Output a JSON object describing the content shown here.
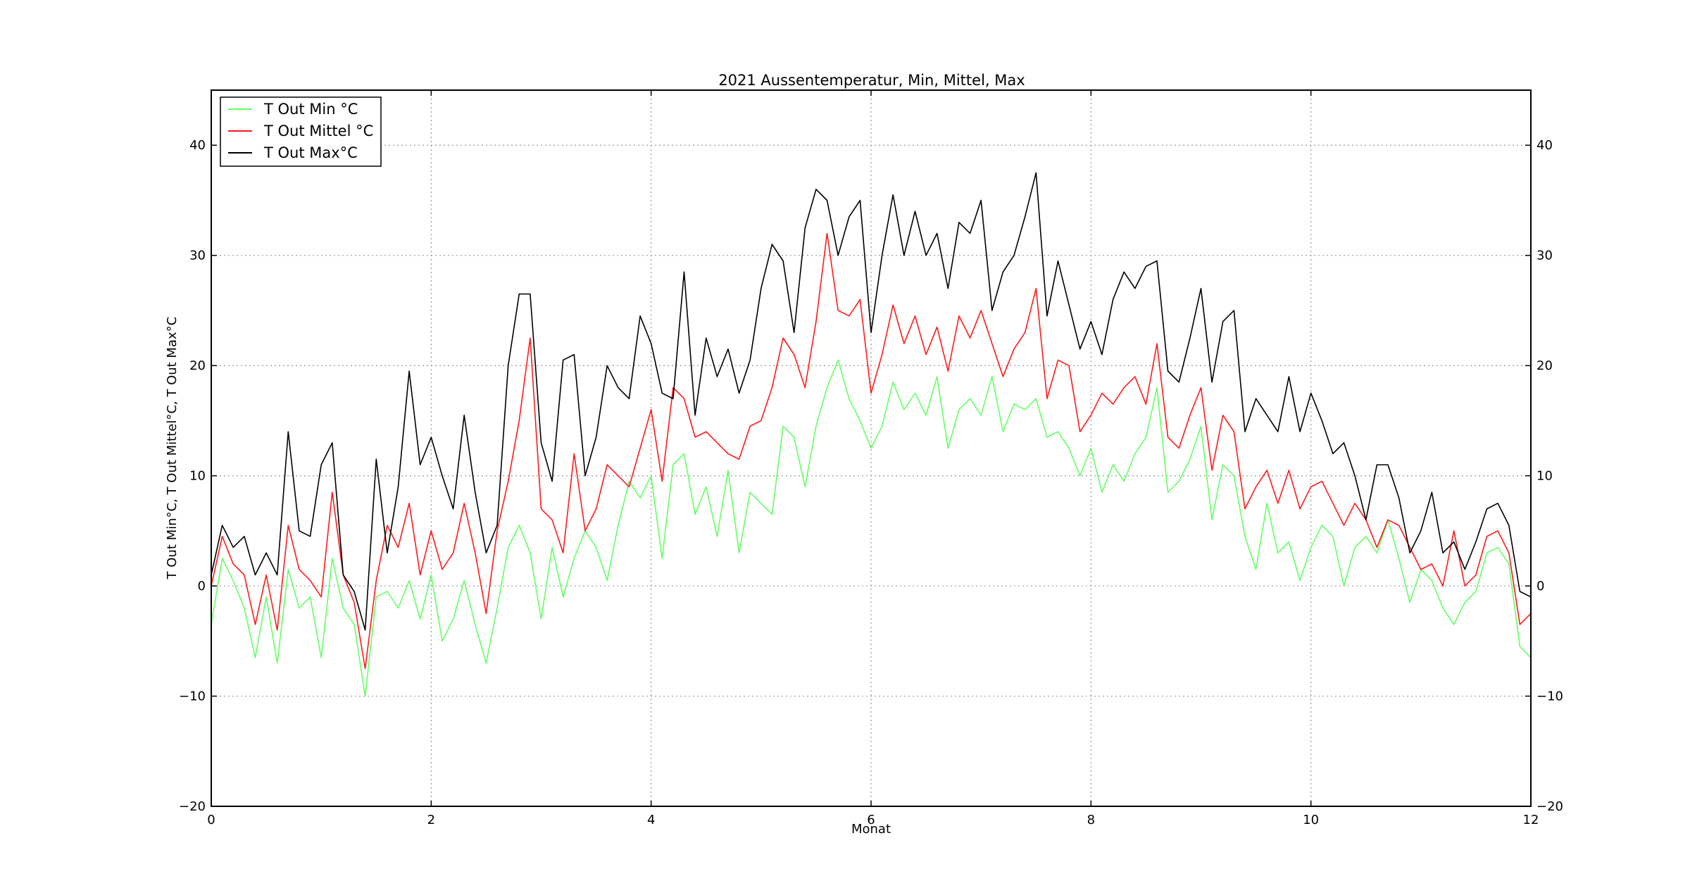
{
  "chart_data": {
    "type": "line",
    "title": "2021 Aussentemperatur, Min, Mittel, Max",
    "xlabel": "Monat",
    "ylabel": "T Out Min°C, T Out Mittel°C, T Out Max°C",
    "xlim": [
      0,
      12
    ],
    "ylim": [
      -20,
      45
    ],
    "xticks": [
      0,
      2,
      4,
      6,
      8,
      10,
      12
    ],
    "yticks": [
      -20,
      -10,
      0,
      10,
      20,
      30,
      40
    ],
    "grid": true,
    "legend_position": "top-left",
    "series": [
      {
        "name": "T Out Min °C",
        "color": "#66ff66",
        "x": [
          0,
          0.1,
          0.2,
          0.3,
          0.4,
          0.5,
          0.6,
          0.7,
          0.8,
          0.9,
          1.0,
          1.1,
          1.2,
          1.3,
          1.4,
          1.5,
          1.6,
          1.7,
          1.8,
          1.9,
          2.0,
          2.1,
          2.2,
          2.3,
          2.4,
          2.5,
          2.6,
          2.7,
          2.8,
          2.9,
          3.0,
          3.1,
          3.2,
          3.3,
          3.4,
          3.5,
          3.6,
          3.7,
          3.8,
          3.9,
          4.0,
          4.1,
          4.2,
          4.3,
          4.4,
          4.5,
          4.6,
          4.7,
          4.8,
          4.9,
          5.0,
          5.1,
          5.2,
          5.3,
          5.4,
          5.5,
          5.6,
          5.7,
          5.8,
          5.9,
          6.0,
          6.1,
          6.2,
          6.3,
          6.4,
          6.5,
          6.6,
          6.7,
          6.8,
          6.9,
          7.0,
          7.1,
          7.2,
          7.3,
          7.4,
          7.5,
          7.6,
          7.7,
          7.8,
          7.9,
          8.0,
          8.1,
          8.2,
          8.3,
          8.4,
          8.5,
          8.6,
          8.7,
          8.8,
          8.9,
          9.0,
          9.1,
          9.2,
          9.3,
          9.4,
          9.5,
          9.6,
          9.7,
          9.8,
          9.9,
          10.0,
          10.1,
          10.2,
          10.3,
          10.4,
          10.5,
          10.6,
          10.7,
          10.8,
          10.9,
          11.0,
          11.1,
          11.2,
          11.3,
          11.4,
          11.5,
          11.6,
          11.7,
          11.8,
          11.9,
          12.0
        ],
        "values": [
          -3.5,
          2.5,
          0.5,
          -2.0,
          -6.5,
          -1.0,
          -7.0,
          1.5,
          -2.0,
          -1.0,
          -6.5,
          2.5,
          -2.0,
          -3.5,
          -10.0,
          -1.0,
          -0.5,
          -2.0,
          0.5,
          -3.0,
          1.0,
          -5.0,
          -3.0,
          0.5,
          -3.5,
          -7.0,
          -2.0,
          3.5,
          5.5,
          3.0,
          -3.0,
          3.5,
          -1.0,
          2.5,
          5.0,
          3.5,
          0.5,
          5.5,
          9.5,
          8.0,
          10.0,
          2.5,
          11.0,
          12.0,
          6.5,
          9.0,
          4.5,
          10.5,
          3.0,
          8.5,
          7.5,
          6.5,
          14.5,
          13.5,
          9.0,
          14.5,
          18.0,
          20.5,
          17.0,
          15.0,
          12.5,
          14.5,
          18.5,
          16.0,
          17.5,
          15.5,
          19.0,
          12.5,
          16.0,
          17.0,
          15.5,
          19.0,
          14.0,
          16.5,
          16.0,
          17.0,
          13.5,
          14.0,
          12.5,
          10.0,
          12.5,
          8.5,
          11.0,
          9.5,
          12.0,
          13.5,
          18.0,
          8.5,
          9.5,
          11.5,
          14.5,
          6.0,
          11.0,
          10.0,
          4.5,
          1.5,
          7.5,
          3.0,
          4.0,
          0.5,
          3.5,
          5.5,
          4.5,
          0.0,
          3.5,
          4.5,
          3.0,
          6.0,
          2.5,
          -1.5,
          1.5,
          0.5,
          -2.0,
          -3.5,
          -1.5,
          -0.5,
          3.0,
          3.5,
          2.0,
          -5.5,
          -6.5
        ]
      },
      {
        "name": "T Out Mittel °C",
        "color": "#ff1a1a",
        "x": [
          0,
          0.1,
          0.2,
          0.3,
          0.4,
          0.5,
          0.6,
          0.7,
          0.8,
          0.9,
          1.0,
          1.1,
          1.2,
          1.3,
          1.4,
          1.5,
          1.6,
          1.7,
          1.8,
          1.9,
          2.0,
          2.1,
          2.2,
          2.3,
          2.4,
          2.5,
          2.6,
          2.7,
          2.8,
          2.9,
          3.0,
          3.1,
          3.2,
          3.3,
          3.4,
          3.5,
          3.6,
          3.7,
          3.8,
          3.9,
          4.0,
          4.1,
          4.2,
          4.3,
          4.4,
          4.5,
          4.6,
          4.7,
          4.8,
          4.9,
          5.0,
          5.1,
          5.2,
          5.3,
          5.4,
          5.5,
          5.6,
          5.7,
          5.8,
          5.9,
          6.0,
          6.1,
          6.2,
          6.3,
          6.4,
          6.5,
          6.6,
          6.7,
          6.8,
          6.9,
          7.0,
          7.1,
          7.2,
          7.3,
          7.4,
          7.5,
          7.6,
          7.7,
          7.8,
          7.9,
          8.0,
          8.1,
          8.2,
          8.3,
          8.4,
          8.5,
          8.6,
          8.7,
          8.8,
          8.9,
          9.0,
          9.1,
          9.2,
          9.3,
          9.4,
          9.5,
          9.6,
          9.7,
          9.8,
          9.9,
          10.0,
          10.1,
          10.2,
          10.3,
          10.4,
          10.5,
          10.6,
          10.7,
          10.8,
          10.9,
          11.0,
          11.1,
          11.2,
          11.3,
          11.4,
          11.5,
          11.6,
          11.7,
          11.8,
          11.9,
          12.0
        ],
        "values": [
          0.0,
          4.5,
          2.0,
          1.0,
          -3.5,
          1.0,
          -4.0,
          5.5,
          1.5,
          0.5,
          -1.0,
          8.5,
          1.0,
          -1.5,
          -7.5,
          0.5,
          5.5,
          3.5,
          7.5,
          1.0,
          5.0,
          1.5,
          3.0,
          7.5,
          3.0,
          -2.5,
          5.0,
          9.5,
          15.0,
          22.5,
          7.0,
          6.0,
          3.0,
          12.0,
          5.0,
          7.0,
          11.0,
          10.0,
          9.0,
          12.5,
          16.0,
          9.5,
          18.0,
          17.0,
          13.5,
          14.0,
          13.0,
          12.0,
          11.5,
          14.5,
          15.0,
          18.0,
          22.5,
          21.0,
          18.0,
          24.0,
          32.0,
          25.0,
          24.5,
          26.0,
          17.5,
          21.0,
          25.5,
          22.0,
          24.5,
          21.0,
          23.5,
          19.5,
          24.5,
          22.5,
          25.0,
          22.0,
          19.0,
          21.5,
          23.0,
          27.0,
          17.0,
          20.5,
          20.0,
          14.0,
          15.5,
          17.5,
          16.5,
          18.0,
          19.0,
          16.5,
          22.0,
          13.5,
          12.5,
          15.5,
          18.0,
          10.5,
          15.5,
          14.0,
          7.0,
          9.0,
          10.5,
          7.5,
          10.5,
          7.0,
          9.0,
          9.5,
          7.5,
          5.5,
          7.5,
          6.0,
          3.5,
          6.0,
          5.5,
          3.5,
          1.5,
          2.0,
          0.0,
          5.0,
          0.0,
          1.0,
          4.5,
          5.0,
          3.0,
          -3.5,
          -2.5
        ]
      },
      {
        "name": "T Out Max°C",
        "color": "#000000",
        "x": [
          0,
          0.1,
          0.2,
          0.3,
          0.4,
          0.5,
          0.6,
          0.7,
          0.8,
          0.9,
          1.0,
          1.1,
          1.2,
          1.3,
          1.4,
          1.5,
          1.6,
          1.7,
          1.8,
          1.9,
          2.0,
          2.1,
          2.2,
          2.3,
          2.4,
          2.5,
          2.6,
          2.7,
          2.8,
          2.9,
          3.0,
          3.1,
          3.2,
          3.3,
          3.4,
          3.5,
          3.6,
          3.7,
          3.8,
          3.9,
          4.0,
          4.1,
          4.2,
          4.3,
          4.4,
          4.5,
          4.6,
          4.7,
          4.8,
          4.9,
          5.0,
          5.1,
          5.2,
          5.3,
          5.4,
          5.5,
          5.6,
          5.7,
          5.8,
          5.9,
          6.0,
          6.1,
          6.2,
          6.3,
          6.4,
          6.5,
          6.6,
          6.7,
          6.8,
          6.9,
          7.0,
          7.1,
          7.2,
          7.3,
          7.4,
          7.5,
          7.6,
          7.7,
          7.8,
          7.9,
          8.0,
          8.1,
          8.2,
          8.3,
          8.4,
          8.5,
          8.6,
          8.7,
          8.8,
          8.9,
          9.0,
          9.1,
          9.2,
          9.3,
          9.4,
          9.5,
          9.6,
          9.7,
          9.8,
          9.9,
          10.0,
          10.1,
          10.2,
          10.3,
          10.4,
          10.5,
          10.6,
          10.7,
          10.8,
          10.9,
          11.0,
          11.1,
          11.2,
          11.3,
          11.4,
          11.5,
          11.6,
          11.7,
          11.8,
          11.9,
          12.0
        ],
        "values": [
          1.0,
          5.5,
          3.5,
          4.5,
          1.0,
          3.0,
          1.0,
          14.0,
          5.0,
          4.5,
          11.0,
          13.0,
          1.0,
          -0.5,
          -4.0,
          11.5,
          3.0,
          9.0,
          19.5,
          11.0,
          13.5,
          10.0,
          7.0,
          15.5,
          8.5,
          3.0,
          5.5,
          20.0,
          26.5,
          26.5,
          13.0,
          9.5,
          20.5,
          21.0,
          10.0,
          13.5,
          20.0,
          18.0,
          17.0,
          24.5,
          22.0,
          17.5,
          17.0,
          28.5,
          15.5,
          22.5,
          19.0,
          21.5,
          17.5,
          20.5,
          27.0,
          31.0,
          29.5,
          23.0,
          32.5,
          36.0,
          35.0,
          30.0,
          33.5,
          35.0,
          23.0,
          30.0,
          35.5,
          30.0,
          34.0,
          30.0,
          32.0,
          27.0,
          33.0,
          32.0,
          35.0,
          25.0,
          28.5,
          30.0,
          33.5,
          37.5,
          24.5,
          29.5,
          25.5,
          21.5,
          24.0,
          21.0,
          26.0,
          28.5,
          27.0,
          29.0,
          29.5,
          19.5,
          18.5,
          22.5,
          27.0,
          18.5,
          24.0,
          25.0,
          14.0,
          17.0,
          15.5,
          14.0,
          19.0,
          14.0,
          17.5,
          15.0,
          12.0,
          13.0,
          10.0,
          6.0,
          11.0,
          11.0,
          8.0,
          3.0,
          5.0,
          8.5,
          3.0,
          4.0,
          1.5,
          4.0,
          7.0,
          7.5,
          5.5,
          -0.5,
          -1.0
        ]
      }
    ]
  }
}
